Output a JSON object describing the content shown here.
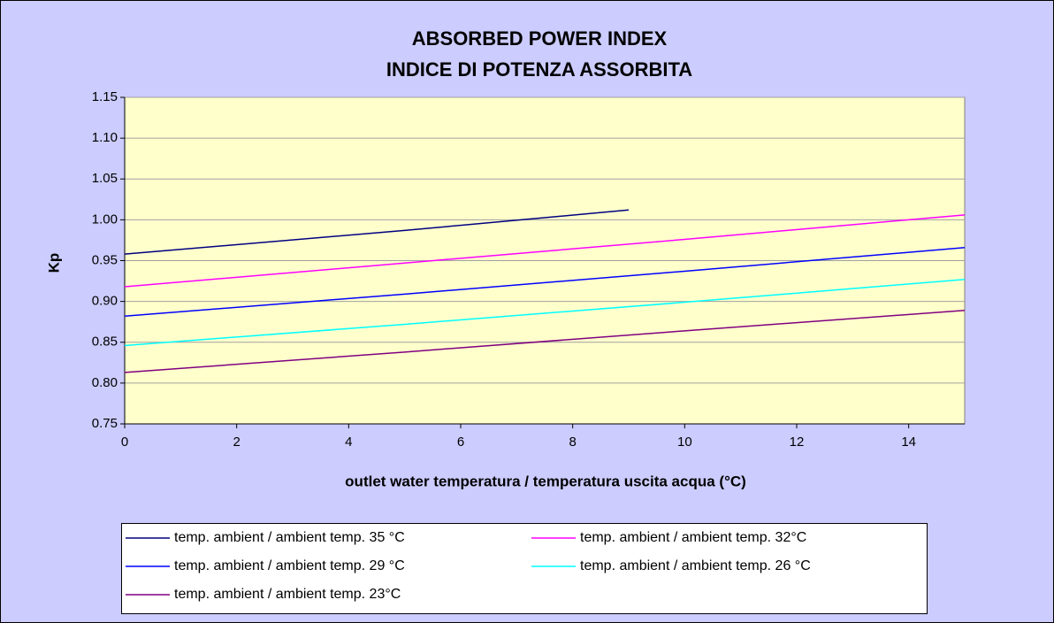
{
  "chart_data": {
    "type": "line",
    "title": [
      "ABSORBED POWER INDEX",
      "INDICE DI POTENZA ASSORBITA"
    ],
    "xlabel": "outlet water temperatura / temperatura uscita acqua (°C)",
    "ylabel": "Kp",
    "xlim": [
      0,
      15
    ],
    "xticks": [
      0,
      2,
      4,
      6,
      8,
      10,
      12,
      14
    ],
    "ylim": [
      0.75,
      1.15
    ],
    "yticks": [
      0.75,
      {
        "value": 0.8,
        "label": "0.80"
      },
      0.85,
      {
        "value": 0.9,
        "label": "0.90"
      },
      0.95,
      {
        "value": 1.0,
        "label": "1.00"
      },
      1.05,
      {
        "value": 1.1,
        "label": "1.10"
      },
      1.15
    ],
    "grid": true,
    "series": [
      {
        "name": "temp. ambient / ambient temp. 35 °C",
        "color": "#000080",
        "x": [
          0,
          5,
          9
        ],
        "values": [
          0.958,
          0.987,
          1.012
        ]
      },
      {
        "name": "temp. ambient / ambient temp. 32°C",
        "color": "#ff00ff",
        "x": [
          0,
          5,
          10,
          15
        ],
        "values": [
          0.918,
          0.947,
          0.976,
          1.006
        ]
      },
      {
        "name": "temp. ambient / ambient temp. 29 °C",
        "color": "#0000ff",
        "x": [
          0,
          5,
          10,
          15
        ],
        "values": [
          0.882,
          0.909,
          0.937,
          0.966
        ]
      },
      {
        "name": "temp. ambient / ambient temp. 26 °C",
        "color": "#00ffff",
        "x": [
          0,
          5,
          10,
          15
        ],
        "values": [
          0.846,
          0.872,
          0.899,
          0.927
        ]
      },
      {
        "name": "temp. ambient / ambient temp. 23°C",
        "color": "#800080",
        "x": [
          0,
          5,
          10,
          15
        ],
        "values": [
          0.813,
          0.838,
          0.864,
          0.889
        ]
      }
    ]
  }
}
